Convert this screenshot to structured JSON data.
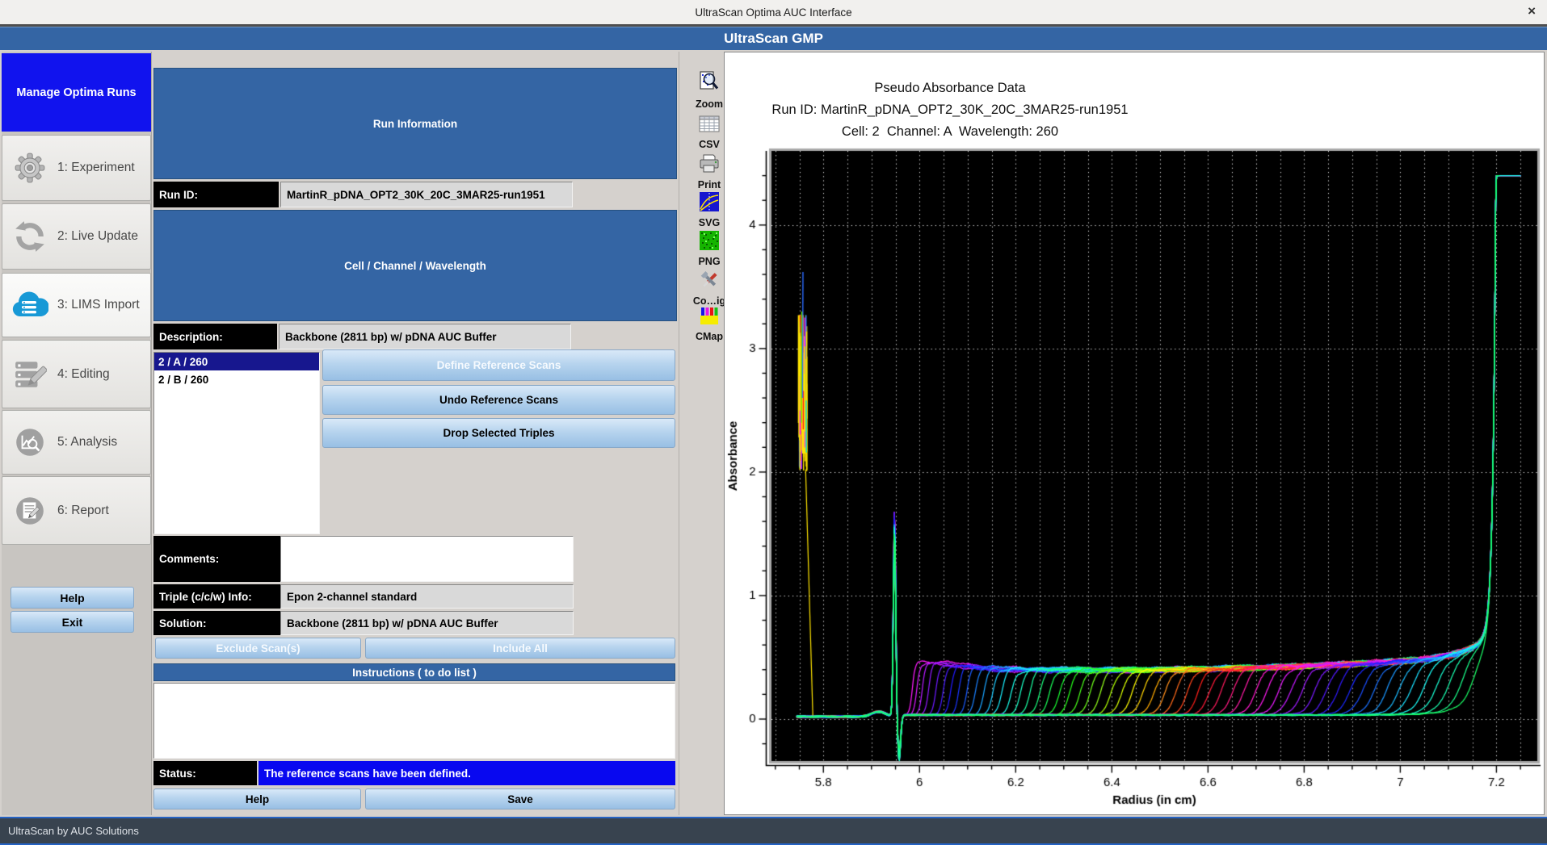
{
  "window": {
    "title": "UltraScan Optima AUC Interface",
    "close_glyph": "×"
  },
  "header": {
    "title": "UltraScan GMP"
  },
  "statusbar": {
    "text": "UltraScan by AUC Solutions"
  },
  "colors": {
    "header_blue": "#3465a4",
    "manage_blue": "#1113ee",
    "status_blue": "#0808f0",
    "selection_navy": "#17178e",
    "button_blue": "#aecfec",
    "lims_cloud_blue": "#1899d6"
  },
  "sidebar": {
    "manage_label": "Manage Optima Runs",
    "items": [
      {
        "label": "1: Experiment",
        "icon": "gear-icon"
      },
      {
        "label": "2: Live Update",
        "icon": "refresh-icon"
      },
      {
        "label": "3: LIMS Import",
        "icon": "cloud-import-icon",
        "active": true
      },
      {
        "label": "4: Editing",
        "icon": "edit-list-icon"
      },
      {
        "label": "5: Analysis",
        "icon": "analysis-icon"
      },
      {
        "label": "6: Report",
        "icon": "report-icon"
      }
    ],
    "help_label": "Help",
    "exit_label": "Exit"
  },
  "panel": {
    "run_information_banner": "Run Information",
    "run_id_label": "Run ID:",
    "run_id_value": "MartinR_pDNA_OPT2_30K_20C_3MAR25-run1951",
    "ccw_banner": "Cell / Channel / Wavelength",
    "description_label": "Description:",
    "description_value": "Backbone (2811 bp) w/ pDNA AUC Buffer",
    "triples": [
      {
        "label": "2 / A / 260",
        "selected": true
      },
      {
        "label": "2 / B / 260",
        "selected": false
      }
    ],
    "define_reference_button": "Define Reference Scans",
    "undo_reference_button": "Undo Reference Scans",
    "drop_triples_button": "Drop Selected Triples",
    "comments_label": "Comments:",
    "comments_value": "",
    "triple_info_label": "Triple (c/c/w) Info:",
    "triple_info_value": "Epon 2-channel standard",
    "solution_label": "Solution:",
    "solution_value": "Backbone (2811 bp) w/ pDNA AUC Buffer",
    "exclude_button": "Exclude Scan(s)",
    "include_button": "Include All",
    "instructions_banner": "Instructions ( to do list )",
    "status_label": "Status:",
    "status_value": "The reference scans have been defined.",
    "help_button": "Help",
    "save_button": "Save"
  },
  "toolbar": {
    "items": [
      {
        "label": "Zoom",
        "icon": "zoom-icon"
      },
      {
        "label": "CSV",
        "icon": "csv-icon"
      },
      {
        "label": "Print",
        "icon": "print-icon"
      },
      {
        "label": "SVG",
        "icon": "svg-export-icon"
      },
      {
        "label": "PNG",
        "icon": "png-export-icon"
      },
      {
        "label": "Co…ig",
        "icon": "config-icon"
      },
      {
        "label": "CMap",
        "icon": "colormap-icon"
      }
    ]
  },
  "chart_data": {
    "type": "line",
    "title": "Pseudo Absorbance Data",
    "subtitle_run": "Run ID: MartinR_pDNA_OPT2_30K_20C_3MAR25-run1951",
    "subtitle_ccw": "Cell: 2  Channel: A  Wavelength: 260",
    "xlabel": "Radius (in cm)",
    "ylabel": "Absorbance",
    "xlim": [
      5.692,
      7.285
    ],
    "ylim": [
      -0.34,
      4.6
    ],
    "x_major_ticks": [
      5.8,
      6.0,
      6.2,
      6.4,
      6.6,
      6.8,
      7.0,
      7.2
    ],
    "x_tick_labels": [
      "5.8",
      "6",
      "6.2",
      "6.4",
      "6.6",
      "6.8",
      "7",
      "7.2"
    ],
    "y_major_ticks": [
      0,
      1,
      2,
      3,
      4
    ],
    "x_minor_step": 0.05,
    "y_minor_step": 0.2,
    "grid_x_step": 0.05,
    "background": "#000000",
    "frame_color": "#a9a9a9",
    "grid_style": "dotted-white",
    "legend": "none",
    "n_scans": 55,
    "colormap": {
      "type": "cyclic-rainbow",
      "hue_start": 300,
      "hue_span": -520
    },
    "features": {
      "data_r_start": 5.744,
      "air_baseline": 0.02,
      "air_bump": {
        "r": 5.915,
        "height": 0.04,
        "width": 0.02
      },
      "air_spike_cluster": {
        "r_min": 5.748,
        "r_max": 5.766,
        "y_base_min": 2.0,
        "y_base_max": 2.5,
        "y_top_max": 3.62,
        "n_strokes": 46,
        "core": {
          "r0": 5.752,
          "r1": 5.764,
          "y0": 2.15,
          "y1": 3.1
        },
        "dominant_color": "#ffe400",
        "accent_colors": [
          "#66e000",
          "#2b6bff",
          "#ff2020",
          "#ff20ff",
          "#00d8d8"
        ]
      },
      "cluster_drop_line": {
        "r0": 5.763,
        "y0": 2.02,
        "r1": 5.778,
        "y1": 0.03
      },
      "meniscus": {
        "r": 5.948,
        "peak": 1.63,
        "width": 0.0035,
        "dip_r": 5.9575,
        "dip": -0.33,
        "dip_width": 0.0045
      },
      "plateau_base": 0.033,
      "plateau_top_curve": {
        "v0": 0.43,
        "vertex_r": 6.35,
        "quad": 0.16,
        "men_bump": 0.04,
        "men_bump_r": 6.02,
        "men_bump_w": 0.1
      },
      "plateau_offset_range": [
        0.02,
        0.045
      ],
      "boundary": {
        "r_first": 5.985,
        "r_last": 7.155,
        "spread_pow": 1.22,
        "width_first": 0.006,
        "width_last": 0.026
      },
      "back_diffusion": {
        "amp": 4.5,
        "r_ref": 7.2,
        "scale": 0.006,
        "tail_amp": 0.22,
        "tail_scale": 0.05
      },
      "bottom_cap": {
        "y": 4.4,
        "r_end": 7.252
      },
      "noise": {
        "a1": 0.005,
        "k1": 55,
        "a2": 0.004,
        "k2": 130,
        "jitter": 0.006
      }
    }
  }
}
